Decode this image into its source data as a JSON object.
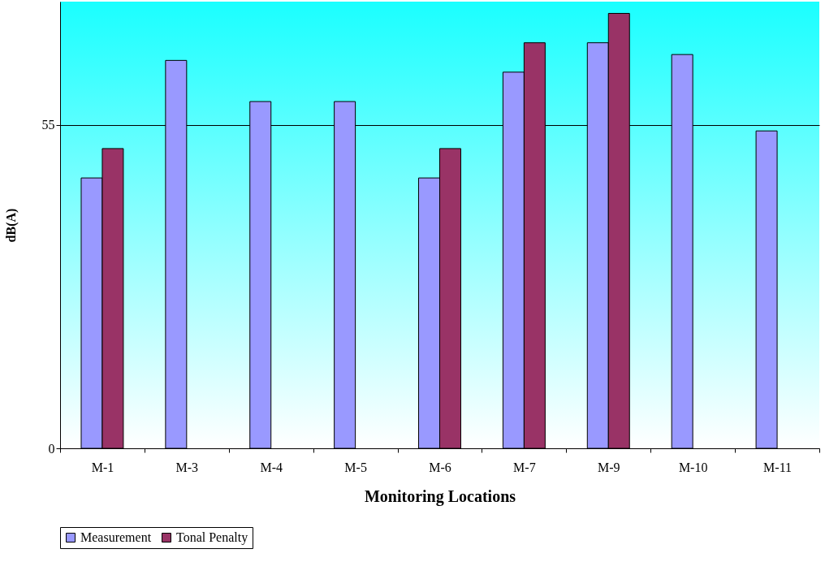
{
  "chart_data": {
    "type": "bar",
    "xlabel": "Monitoring Locations",
    "ylabel": "dB(A)",
    "categories": [
      "M-1",
      "M-3",
      "M-4",
      "M-5",
      "M-6",
      "M-7",
      "M-9",
      "M-10",
      "M-11"
    ],
    "series": [
      {
        "name": "Measurement",
        "color": "#9999ff",
        "values": [
          46,
          66,
          59,
          59,
          46,
          64,
          69,
          67,
          54
        ]
      },
      {
        "name": "Tonal Penalty",
        "color": "#993366",
        "values": [
          51,
          null,
          null,
          null,
          51,
          69,
          74,
          null,
          null
        ]
      }
    ],
    "ylim": [
      0,
      76
    ],
    "yticks": [
      0,
      55
    ],
    "grid": "y",
    "legend": "bottom"
  }
}
